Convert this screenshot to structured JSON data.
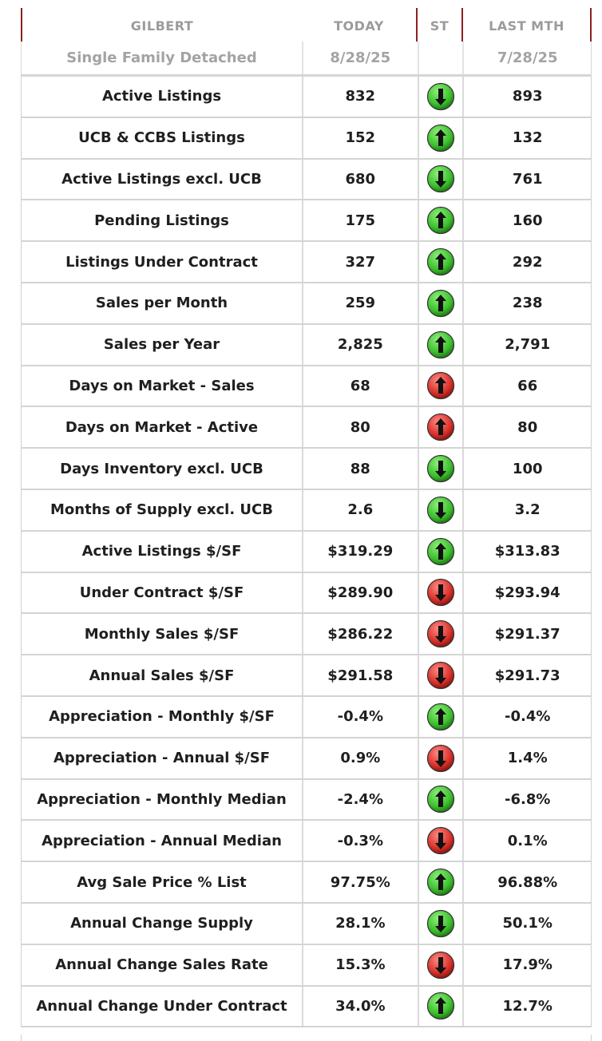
{
  "header": {
    "area": "GILBERT",
    "col_today": "TODAY",
    "col_status": "ST",
    "col_last": "LAST MTH"
  },
  "subheader": {
    "property_type": "Single Family Detached",
    "today_date": "8/28/25",
    "last_date": "7/28/25"
  },
  "colors": {
    "header_border": "#8e1f1f",
    "arrow_green": "#3dbf2e",
    "arrow_red": "#d8312b"
  },
  "rows": [
    {
      "label": "Active Listings",
      "today": "832",
      "status": "green-down-arrow-icon",
      "last": "893"
    },
    {
      "label": "UCB & CCBS Listings",
      "today": "152",
      "status": "green-up-arrow-icon",
      "last": "132"
    },
    {
      "label": "Active Listings excl. UCB",
      "today": "680",
      "status": "green-down-arrow-icon",
      "last": "761"
    },
    {
      "label": "Pending Listings",
      "today": "175",
      "status": "green-up-arrow-icon",
      "last": "160"
    },
    {
      "label": "Listings Under Contract",
      "today": "327",
      "status": "green-up-arrow-icon",
      "last": "292"
    },
    {
      "label": "Sales per Month",
      "today": "259",
      "status": "green-up-arrow-icon",
      "last": "238"
    },
    {
      "label": "Sales per Year",
      "today": "2,825",
      "status": "green-up-arrow-icon",
      "last": "2,791"
    },
    {
      "label": "Days on Market - Sales",
      "today": "68",
      "status": "red-up-arrow-icon",
      "last": "66"
    },
    {
      "label": "Days on Market - Active",
      "today": "80",
      "status": "red-up-arrow-icon",
      "last": "80"
    },
    {
      "label": "Days Inventory excl. UCB",
      "today": "88",
      "status": "green-down-arrow-icon",
      "last": "100"
    },
    {
      "label": "Months of Supply excl. UCB",
      "today": "2.6",
      "status": "green-down-arrow-icon",
      "last": "3.2"
    },
    {
      "label": "Active Listings $/SF",
      "today": "$319.29",
      "status": "green-up-arrow-icon",
      "last": "$313.83"
    },
    {
      "label": "Under Contract $/SF",
      "today": "$289.90",
      "status": "red-down-arrow-icon",
      "last": "$293.94"
    },
    {
      "label": "Monthly Sales $/SF",
      "today": "$286.22",
      "status": "red-down-arrow-icon",
      "last": "$291.37"
    },
    {
      "label": "Annual Sales $/SF",
      "today": "$291.58",
      "status": "red-down-arrow-icon",
      "last": "$291.73"
    },
    {
      "label": "Appreciation - Monthly $/SF",
      "today": "-0.4%",
      "status": "green-up-arrow-icon",
      "last": "-0.4%"
    },
    {
      "label": "Appreciation - Annual $/SF",
      "today": "0.9%",
      "status": "red-down-arrow-icon",
      "last": "1.4%"
    },
    {
      "label": "Appreciation - Monthly Median",
      "today": "-2.4%",
      "status": "green-up-arrow-icon",
      "last": "-6.8%"
    },
    {
      "label": "Appreciation - Annual Median",
      "today": "-0.3%",
      "status": "red-down-arrow-icon",
      "last": "0.1%"
    },
    {
      "label": "Avg Sale Price % List",
      "today": "97.75%",
      "status": "green-up-arrow-icon",
      "last": "96.88%"
    },
    {
      "label": "Annual Change Supply",
      "today": "28.1%",
      "status": "green-down-arrow-icon",
      "last": "50.1%"
    },
    {
      "label": "Annual Change Sales Rate",
      "today": "15.3%",
      "status": "red-down-arrow-icon",
      "last": "17.9%"
    },
    {
      "label": "Annual Change Under Contract",
      "today": "34.0%",
      "status": "green-up-arrow-icon",
      "last": "12.7%"
    }
  ]
}
